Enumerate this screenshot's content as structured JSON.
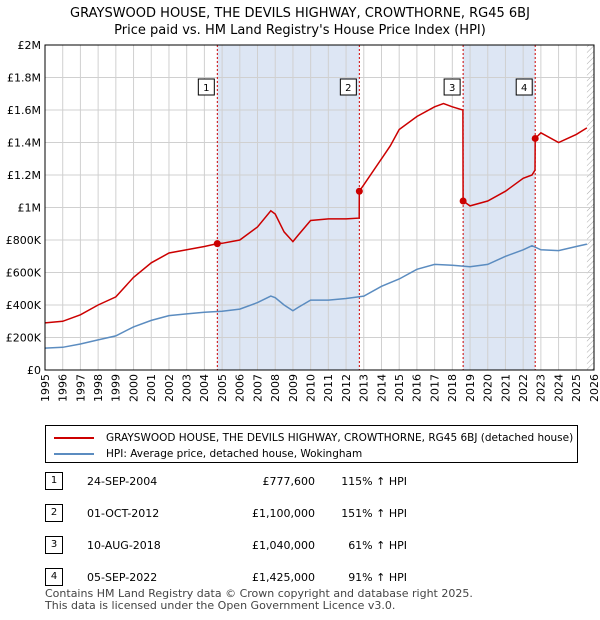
{
  "chart_data": {
    "type": "line",
    "title": "GRAYSWOOD HOUSE, THE DEVILS HIGHWAY, CROWTHORNE, RG45 6BJ",
    "subtitle": "Price paid vs. HM Land Registry's House Price Index (HPI)",
    "xlim": [
      1995,
      2026
    ],
    "ylim": [
      0,
      2000000
    ],
    "x_ticks": [
      1995,
      1996,
      1997,
      1998,
      1999,
      2000,
      2001,
      2002,
      2003,
      2004,
      2005,
      2006,
      2007,
      2008,
      2009,
      2010,
      2011,
      2012,
      2013,
      2014,
      2015,
      2016,
      2017,
      2018,
      2019,
      2020,
      2021,
      2022,
      2023,
      2024,
      2025,
      2026
    ],
    "y_ticks": [
      {
        "value": 0,
        "label": "£0"
      },
      {
        "value": 200000,
        "label": "£200K"
      },
      {
        "value": 400000,
        "label": "£400K"
      },
      {
        "value": 600000,
        "label": "£600K"
      },
      {
        "value": 800000,
        "label": "£800K"
      },
      {
        "value": 1000000,
        "label": "£1M"
      },
      {
        "value": 1200000,
        "label": "£1.2M"
      },
      {
        "value": 1400000,
        "label": "£1.4M"
      },
      {
        "value": 1600000,
        "label": "£1.6M"
      },
      {
        "value": 1800000,
        "label": "£1.8M"
      },
      {
        "value": 2000000,
        "label": "£2M"
      }
    ],
    "series": [
      {
        "name": "GRAYSWOOD HOUSE, THE DEVILS HIGHWAY, CROWTHORNE, RG45 6BJ (detached house)",
        "color": "#cc0000",
        "x": [
          1995,
          1996,
          1997,
          1998,
          1999,
          2000,
          2001,
          2002,
          2003,
          2004,
          2004.73,
          2005,
          2006,
          2007,
          2007.75,
          2008,
          2008.5,
          2009,
          2009.3,
          2010,
          2011,
          2012,
          2012.74,
          2012.75,
          2013,
          2014,
          2014.5,
          2015,
          2016,
          2017,
          2017.5,
          2018,
          2018.6,
          2018.61,
          2019,
          2020,
          2021,
          2022,
          2022.5,
          2022.67,
          2022.68,
          2023,
          2024,
          2025,
          2025.6
        ],
        "y": [
          290000,
          300000,
          340000,
          400000,
          450000,
          570000,
          660000,
          720000,
          740000,
          760000,
          777600,
          780000,
          800000,
          880000,
          980000,
          960000,
          850000,
          790000,
          830000,
          920000,
          930000,
          930000,
          935000,
          1100000,
          1140000,
          1300000,
          1380000,
          1480000,
          1560000,
          1620000,
          1640000,
          1620000,
          1600000,
          1040000,
          1010000,
          1040000,
          1100000,
          1180000,
          1200000,
          1230000,
          1425000,
          1460000,
          1400000,
          1450000,
          1490000
        ]
      },
      {
        "name": "HPI: Average price, detached house, Wokingham",
        "color": "#5b8cc0",
        "x": [
          1995,
          1996,
          1997,
          1998,
          1999,
          2000,
          2001,
          2002,
          2003,
          2004,
          2005,
          2006,
          2007,
          2007.75,
          2008,
          2008.5,
          2009,
          2009.3,
          2010,
          2011,
          2012,
          2013,
          2014,
          2015,
          2016,
          2017,
          2018,
          2019,
          2020,
          2021,
          2022,
          2022.5,
          2023,
          2024,
          2025,
          2025.6
        ],
        "y": [
          135000,
          140000,
          160000,
          185000,
          210000,
          265000,
          305000,
          335000,
          345000,
          355000,
          362000,
          375000,
          415000,
          455000,
          445000,
          400000,
          365000,
          385000,
          430000,
          430000,
          440000,
          455000,
          515000,
          560000,
          620000,
          650000,
          645000,
          635000,
          650000,
          700000,
          740000,
          765000,
          740000,
          735000,
          760000,
          775000
        ]
      }
    ],
    "sales": [
      {
        "num": "1",
        "date": "24-SEP-2004",
        "year": 2004.73,
        "price_value": 777600,
        "price": "£777,600",
        "hpi": "115% ↑ HPI"
      },
      {
        "num": "2",
        "date": "01-OCT-2012",
        "year": 2012.75,
        "price_value": 1100000,
        "price": "£1,100,000",
        "hpi": "151% ↑ HPI"
      },
      {
        "num": "3",
        "date": "10-AUG-2018",
        "year": 2018.61,
        "price_value": 1040000,
        "price": "£1,040,000",
        "hpi": "61% ↑ HPI"
      },
      {
        "num": "4",
        "date": "05-SEP-2022",
        "year": 2022.68,
        "price_value": 1425000,
        "price": "£1,425,000",
        "hpi": "91% ↑ HPI"
      }
    ],
    "legend_position": "below"
  },
  "footer": {
    "line1": "Contains HM Land Registry data © Crown copyright and database right 2025.",
    "line2": "This data is licensed under the Open Government Licence v3.0."
  }
}
